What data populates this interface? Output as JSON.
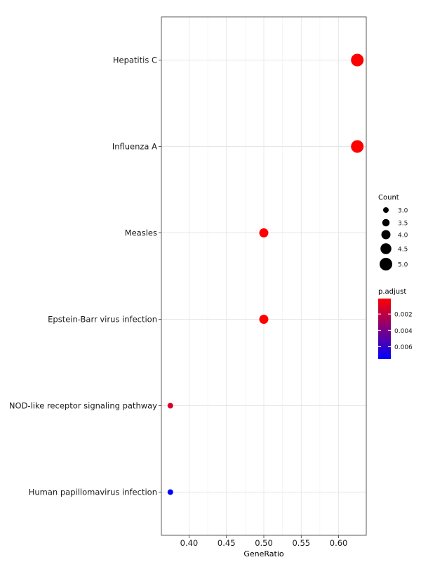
{
  "chart_data": {
    "type": "scatter",
    "xlabel": "GeneRatio",
    "ylabel": "",
    "xlim": [
      0.363,
      0.637
    ],
    "xticks": [
      0.4,
      0.45,
      0.5,
      0.55,
      0.6
    ],
    "xtick_labels": [
      "0.40",
      "0.45",
      "0.50",
      "0.55",
      "0.60"
    ],
    "categories": [
      "Hepatitis C",
      "Influenza A",
      "Measles",
      "Epstein-Barr virus infection",
      "NOD-like receptor signaling pathway",
      "Human papillomavirus infection"
    ],
    "points": [
      {
        "term": "Hepatitis C",
        "gene_ratio": 0.625,
        "count": 5,
        "p_adjust": 0.0001
      },
      {
        "term": "Influenza A",
        "gene_ratio": 0.625,
        "count": 5,
        "p_adjust": 0.0001
      },
      {
        "term": "Measles",
        "gene_ratio": 0.5,
        "count": 4,
        "p_adjust": 0.0001
      },
      {
        "term": "Epstein-Barr virus infection",
        "gene_ratio": 0.5,
        "count": 4,
        "p_adjust": 0.0001
      },
      {
        "term": "NOD-like receptor signaling pathway",
        "gene_ratio": 0.375,
        "count": 3,
        "p_adjust": 0.0012
      },
      {
        "term": "Human papillomavirus infection",
        "gene_ratio": 0.375,
        "count": 3,
        "p_adjust": 0.0075
      }
    ],
    "size_legend": {
      "title": "Count",
      "values": [
        3.0,
        3.5,
        4.0,
        4.5,
        5.0
      ],
      "labels": [
        "3.0",
        "3.5",
        "4.0",
        "4.5",
        "5.0"
      ]
    },
    "color_legend": {
      "title": "p.adjust",
      "range": [
        0.0001,
        0.0075
      ],
      "low_color": "#ff0000",
      "high_color": "#0000ff",
      "ticks": [
        0.002,
        0.004,
        0.006
      ],
      "tick_labels": [
        "0.002",
        "0.004",
        "0.006"
      ]
    },
    "grid": true,
    "legend_position": "right"
  }
}
